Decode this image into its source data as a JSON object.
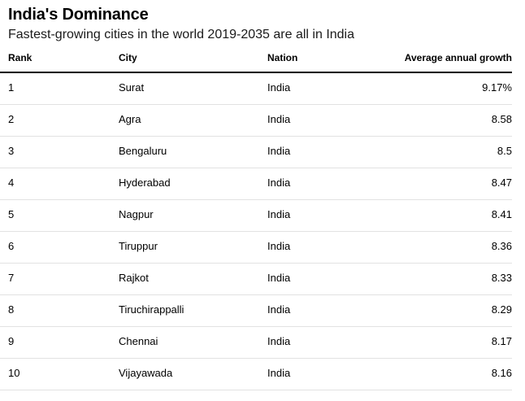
{
  "title": "India's Dominance",
  "subtitle": "Fastest-growing cities in the world 2019-2035 are all in India",
  "chart_data": {
    "type": "table",
    "title": "India's Dominance",
    "subtitle": "Fastest-growing cities in the world 2019-2035 are all in India",
    "columns": [
      "Rank",
      "City",
      "Nation",
      "Average annual growth"
    ],
    "rows": [
      {
        "rank": "1",
        "city": "Surat",
        "nation": "India",
        "growth": "9.17%"
      },
      {
        "rank": "2",
        "city": "Agra",
        "nation": "India",
        "growth": "8.58"
      },
      {
        "rank": "3",
        "city": "Bengaluru",
        "nation": "India",
        "growth": "8.5"
      },
      {
        "rank": "4",
        "city": "Hyderabad",
        "nation": "India",
        "growth": "8.47"
      },
      {
        "rank": "5",
        "city": "Nagpur",
        "nation": "India",
        "growth": "8.41"
      },
      {
        "rank": "6",
        "city": "Tiruppur",
        "nation": "India",
        "growth": "8.36"
      },
      {
        "rank": "7",
        "city": "Rajkot",
        "nation": "India",
        "growth": "8.33"
      },
      {
        "rank": "8",
        "city": "Tiruchirappalli",
        "nation": "India",
        "growth": "8.29"
      },
      {
        "rank": "9",
        "city": "Chennai",
        "nation": "India",
        "growth": "8.17"
      },
      {
        "rank": "10",
        "city": "Vijayawada",
        "nation": "India",
        "growth": "8.16"
      }
    ]
  }
}
